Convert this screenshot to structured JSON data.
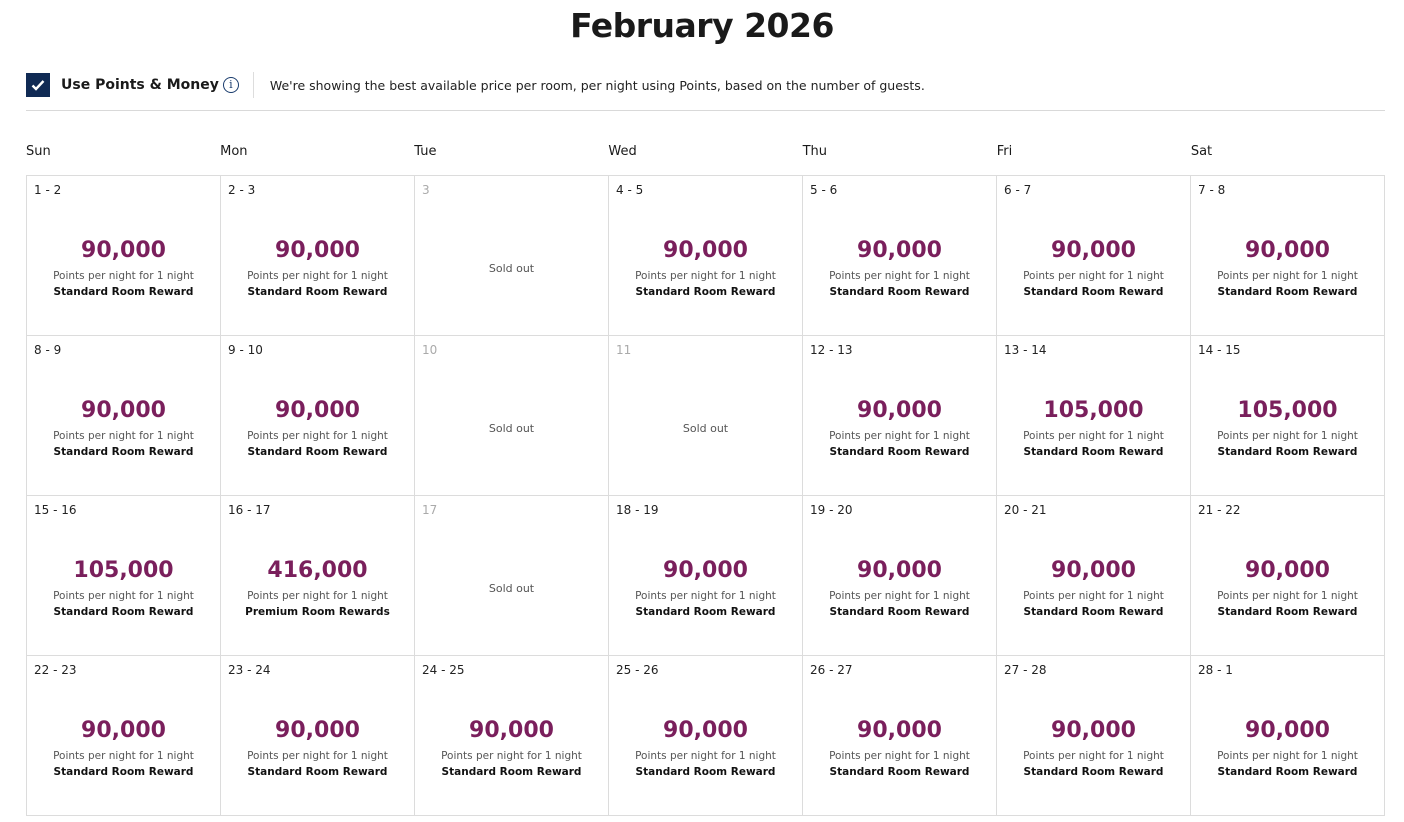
{
  "title": "February 2026",
  "points_money": {
    "checked": true,
    "label": "Use Points & Money",
    "description": "We're showing the best available price per room, per night using Points, based on the number of guests."
  },
  "colors": {
    "price": "#7a1f5c",
    "checkbox": "#102a54"
  },
  "weekdays": [
    "Sun",
    "Mon",
    "Tue",
    "Wed",
    "Thu",
    "Fri",
    "Sat"
  ],
  "days": [
    {
      "dates": "1 - 2",
      "price": "90,000",
      "sub": "Points per night for 1 night",
      "room": "Standard Room Reward"
    },
    {
      "dates": "2 - 3",
      "price": "90,000",
      "sub": "Points per night for 1 night",
      "room": "Standard Room Reward"
    },
    {
      "dates": "3",
      "sold": "Sold out"
    },
    {
      "dates": "4 - 5",
      "price": "90,000",
      "sub": "Points per night for 1 night",
      "room": "Standard Room Reward"
    },
    {
      "dates": "5 - 6",
      "price": "90,000",
      "sub": "Points per night for 1 night",
      "room": "Standard Room Reward"
    },
    {
      "dates": "6 - 7",
      "price": "90,000",
      "sub": "Points per night for 1 night",
      "room": "Standard Room Reward"
    },
    {
      "dates": "7 - 8",
      "price": "90,000",
      "sub": "Points per night for 1 night",
      "room": "Standard Room Reward"
    },
    {
      "dates": "8 - 9",
      "price": "90,000",
      "sub": "Points per night for 1 night",
      "room": "Standard Room Reward"
    },
    {
      "dates": "9 - 10",
      "price": "90,000",
      "sub": "Points per night for 1 night",
      "room": "Standard Room Reward"
    },
    {
      "dates": "10",
      "sold": "Sold out"
    },
    {
      "dates": "11",
      "sold": "Sold out"
    },
    {
      "dates": "12 - 13",
      "price": "90,000",
      "sub": "Points per night for 1 night",
      "room": "Standard Room Reward"
    },
    {
      "dates": "13 - 14",
      "price": "105,000",
      "sub": "Points per night for 1 night",
      "room": "Standard Room Reward"
    },
    {
      "dates": "14 - 15",
      "price": "105,000",
      "sub": "Points per night for 1 night",
      "room": "Standard Room Reward"
    },
    {
      "dates": "15 - 16",
      "price": "105,000",
      "sub": "Points per night for 1 night",
      "room": "Standard Room Reward"
    },
    {
      "dates": "16 - 17",
      "price": "416,000",
      "sub": "Points per night for 1 night",
      "room": "Premium Room Rewards"
    },
    {
      "dates": "17",
      "sold": "Sold out"
    },
    {
      "dates": "18 - 19",
      "price": "90,000",
      "sub": "Points per night for 1 night",
      "room": "Standard Room Reward"
    },
    {
      "dates": "19 - 20",
      "price": "90,000",
      "sub": "Points per night for 1 night",
      "room": "Standard Room Reward"
    },
    {
      "dates": "20 - 21",
      "price": "90,000",
      "sub": "Points per night for 1 night",
      "room": "Standard Room Reward"
    },
    {
      "dates": "21 - 22",
      "price": "90,000",
      "sub": "Points per night for 1 night",
      "room": "Standard Room Reward"
    },
    {
      "dates": "22 - 23",
      "price": "90,000",
      "sub": "Points per night for 1 night",
      "room": "Standard Room Reward"
    },
    {
      "dates": "23 - 24",
      "price": "90,000",
      "sub": "Points per night for 1 night",
      "room": "Standard Room Reward"
    },
    {
      "dates": "24 - 25",
      "price": "90,000",
      "sub": "Points per night for 1 night",
      "room": "Standard Room Reward"
    },
    {
      "dates": "25 - 26",
      "price": "90,000",
      "sub": "Points per night for 1 night",
      "room": "Standard Room Reward"
    },
    {
      "dates": "26 - 27",
      "price": "90,000",
      "sub": "Points per night for 1 night",
      "room": "Standard Room Reward"
    },
    {
      "dates": "27 - 28",
      "price": "90,000",
      "sub": "Points per night for 1 night",
      "room": "Standard Room Reward"
    },
    {
      "dates": "28 - 1",
      "price": "90,000",
      "sub": "Points per night for 1 night",
      "room": "Standard Room Reward"
    }
  ]
}
